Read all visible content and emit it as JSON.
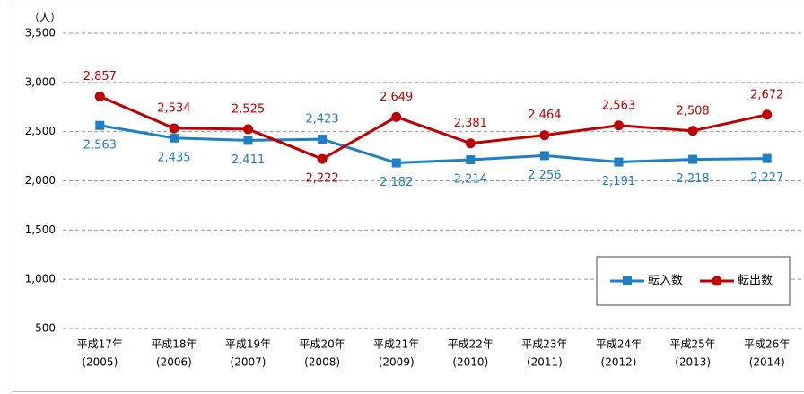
{
  "chart_data": {
    "type": "line",
    "y_label": "（人）",
    "categories": [
      [
        "平成17年",
        "(2005)"
      ],
      [
        "平成18年",
        "(2006)"
      ],
      [
        "平成19年",
        "(2007)"
      ],
      [
        "平成20年",
        "(2008)"
      ],
      [
        "平成21年",
        "(2009)"
      ],
      [
        "平成22年",
        "(2010)"
      ],
      [
        "平成23年",
        "(2011)"
      ],
      [
        "平成24年",
        "(2012)"
      ],
      [
        "平成25年",
        "(2013)"
      ],
      [
        "平成26年",
        "(2014)"
      ]
    ],
    "series": [
      {
        "name": "転入数",
        "color": "#1f7fc4",
        "marker": "square",
        "values": [
          2563,
          2435,
          2411,
          2423,
          2182,
          2214,
          2256,
          2191,
          2218,
          2227
        ],
        "value_labels": [
          "2,563",
          "2,435",
          "2,411",
          "2,423",
          "2,182",
          "2,214",
          "2,256",
          "2,191",
          "2,218",
          "2,227"
        ]
      },
      {
        "name": "転出数",
        "color": "#c00000",
        "marker": "circle",
        "values": [
          2857,
          2534,
          2525,
          2222,
          2649,
          2381,
          2464,
          2563,
          2508,
          2672
        ],
        "value_labels": [
          "2,857",
          "2,534",
          "2,525",
          "2,222",
          "2,649",
          "2,381",
          "2,464",
          "2,563",
          "2,508",
          "2,672"
        ]
      }
    ],
    "ylim": [
      500,
      3500
    ],
    "yticks": [
      500,
      {
        "value": 1000,
        "label": "1,000"
      },
      {
        "value": 1500,
        "label": "1,500"
      },
      {
        "value": 2000,
        "label": "2,000"
      },
      {
        "value": 2500,
        "label": "2,500"
      },
      {
        "value": 3000,
        "label": "3,000"
      },
      {
        "value": 3500,
        "label": "3,500"
      }
    ],
    "grid": true,
    "legend": "lower right"
  }
}
